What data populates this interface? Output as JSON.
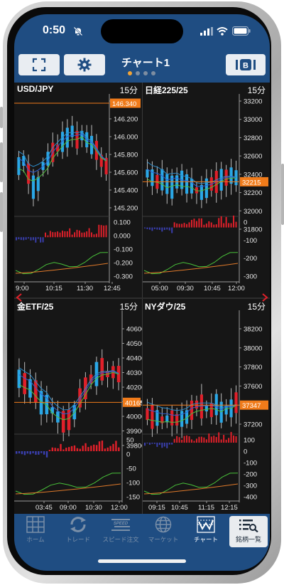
{
  "status": {
    "time": "0:50"
  },
  "header": {
    "title": "チャート1",
    "page_dots": 4,
    "active_dot": 0
  },
  "panels": [
    {
      "symbol": "USD/JPY",
      "period": "15分",
      "price_ticks": [
        "146.400",
        "146.200",
        "146.000",
        "145.800",
        "145.600",
        "145.400",
        "145.200"
      ],
      "current_price": "146.340",
      "osc_ticks": [
        "0.100",
        "0.000",
        "-0.100",
        "-0.200",
        "-0.300"
      ],
      "time_ticks": [
        "9:00",
        "10:15",
        "11:30",
        "12:45"
      ]
    },
    {
      "symbol": "日経225/25",
      "period": "15分",
      "price_ticks": [
        "33200",
        "33000",
        "32800",
        "32600",
        "32400",
        "32200",
        "32000",
        "31800"
      ],
      "current_price": "32215",
      "osc_ticks": [
        "0",
        "-100",
        "-200",
        "-300"
      ],
      "time_ticks": [
        "05:00",
        "09:30",
        "10:45",
        "12:00"
      ]
    },
    {
      "symbol": "金ETF/25",
      "period": "15分",
      "price_ticks": [
        "40600",
        "40500",
        "40400",
        "40300",
        "40200",
        "40100",
        "40000",
        "39900",
        "39800"
      ],
      "current_price": "40165",
      "osc_ticks": [
        "50",
        "0",
        "-50",
        "-100",
        "-150"
      ],
      "time_ticks": [
        "03:45",
        "09:00",
        "10:30",
        "12:00"
      ]
    },
    {
      "symbol": "NYダウ/25",
      "period": "15分",
      "price_ticks": [
        "38200",
        "38000",
        "37800",
        "37600",
        "37400",
        "37200"
      ],
      "current_price": "37347",
      "osc_ticks": [
        "100",
        "0",
        "-100",
        "-200",
        "-300",
        "-400"
      ],
      "time_ticks": [
        "09:15",
        "10:45",
        "11:15",
        "12:15"
      ]
    }
  ],
  "tabs": [
    {
      "label": "ホーム",
      "icon": "grid-icon"
    },
    {
      "label": "トレード",
      "icon": "refresh-arrows-icon"
    },
    {
      "label": "スピード注文",
      "icon": "speed-icon"
    },
    {
      "label": "マーケット",
      "icon": "globe-icon"
    },
    {
      "label": "チャート",
      "icon": "chart-icon"
    },
    {
      "label": "銘柄一覧",
      "icon": "list-search-icon"
    }
  ],
  "colors": {
    "header_bg": "#1f4d82",
    "up": "#2aa7e6",
    "down": "#e0202a",
    "price_tag": "#f07b1a",
    "dot_active": "#f0a336"
  }
}
